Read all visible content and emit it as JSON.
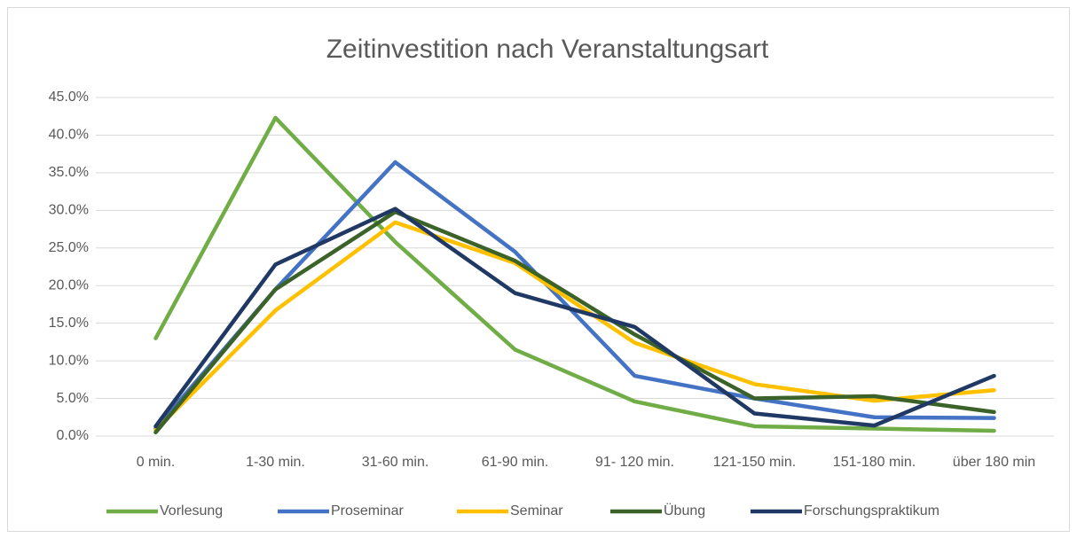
{
  "chart_data": {
    "type": "line",
    "title": "Zeitinvestition nach Veranstaltungsart",
    "categories": [
      "0 min.",
      "1-30 min.",
      "31-60 min.",
      "61-90 min.",
      "91- 120 min.",
      "121-150 min.",
      "151-180 min.",
      "über 180 min"
    ],
    "series": [
      {
        "name": "Vorlesung",
        "color": "#70ad47",
        "values": [
          13.0,
          42.3,
          25.8,
          11.5,
          4.6,
          1.3,
          1.0,
          0.7
        ]
      },
      {
        "name": "Proseminar",
        "color": "#4472c4",
        "values": [
          1.0,
          19.5,
          36.4,
          24.5,
          8.0,
          5.0,
          2.5,
          2.4
        ]
      },
      {
        "name": "Seminar",
        "color": "#ffc000",
        "values": [
          0.8,
          16.7,
          28.4,
          23.0,
          12.4,
          6.9,
          4.7,
          6.1
        ]
      },
      {
        "name": "Übung",
        "color": "#3b6228",
        "values": [
          0.5,
          19.5,
          29.8,
          23.3,
          13.5,
          5.0,
          5.3,
          3.2
        ]
      },
      {
        "name": "Forschungspraktikum",
        "color": "#203864",
        "values": [
          1.3,
          22.8,
          30.2,
          19.0,
          14.5,
          3.0,
          1.4,
          8.0
        ]
      }
    ],
    "ylim": [
      0,
      45
    ],
    "yticks": [
      {
        "value": 0,
        "label": "0.0%"
      },
      {
        "value": 5,
        "label": "5.0%"
      },
      {
        "value": 10,
        "label": "10.0%"
      },
      {
        "value": 15,
        "label": "15.0%"
      },
      {
        "value": 20,
        "label": "20.0%"
      },
      {
        "value": 25,
        "label": "25.0%"
      },
      {
        "value": 30,
        "label": "30.0%"
      },
      {
        "value": 35,
        "label": "35.0%"
      },
      {
        "value": 40,
        "label": "40.0%"
      },
      {
        "value": 45,
        "label": "45.0%"
      }
    ],
    "grid": true,
    "legend": "bottom"
  }
}
